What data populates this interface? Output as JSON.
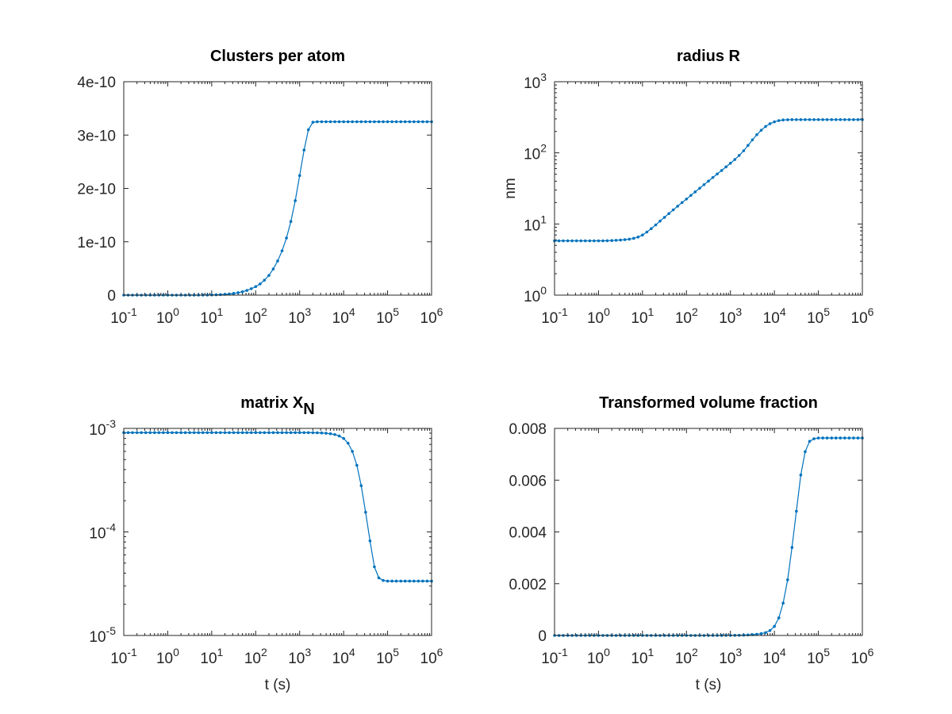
{
  "figure": {
    "background": "#ffffff"
  },
  "chart_data": [
    {
      "type": "line",
      "title": "Clusters per atom",
      "xlabel": "",
      "ylabel": "",
      "xscale": "log",
      "yscale": "linear",
      "xlim": [
        0.1,
        1000000
      ],
      "ylim": [
        0,
        4e-10
      ],
      "yticks": [
        0,
        1e-10,
        2e-10,
        3e-10,
        4e-10
      ],
      "ytick_labels": [
        "0",
        "1e-10",
        "2e-10",
        "3e-10",
        "4e-10"
      ],
      "xticks": [
        0.1,
        1,
        10,
        100,
        1000,
        10000,
        100000,
        1000000
      ],
      "xtick_labels": [
        [
          "10",
          "-1"
        ],
        [
          "10",
          "0"
        ],
        [
          "10",
          "1"
        ],
        [
          "10",
          "2"
        ],
        [
          "10",
          "3"
        ],
        [
          "10",
          "4"
        ],
        [
          "10",
          "5"
        ],
        [
          "10",
          "6"
        ]
      ],
      "grid": false,
      "color": "#0072bd",
      "series": [
        {
          "x": [
            0.1,
            0.126,
            0.158,
            0.2,
            0.251,
            0.316,
            0.398,
            0.501,
            0.631,
            0.794,
            1,
            1.26,
            1.58,
            2,
            2.51,
            3.16,
            3.98,
            5.01,
            6.31,
            7.94,
            10,
            12.6,
            15.8,
            20,
            25.1,
            31.6,
            39.8,
            50.1,
            63.1,
            79.4,
            100,
            126,
            158,
            200,
            251,
            316,
            398,
            501,
            631,
            794,
            1000,
            1260,
            1580,
            2000,
            2510,
            3160,
            3980,
            5010,
            6310,
            7940,
            10000,
            12600,
            15800,
            20000,
            25100,
            31600,
            39800,
            50100,
            63100,
            79400,
            100000,
            126000,
            158000,
            200000,
            251000,
            316000,
            398000,
            501000,
            631000,
            794000,
            1000000
          ],
          "y": [
            0,
            0,
            0,
            0,
            0,
            0,
            0,
            0,
            0,
            0,
            0,
            0,
            0,
            0,
            0,
            0,
            0,
            0,
            1e-13,
            2e-13,
            4e-13,
            6e-13,
            1e-12,
            1.5e-12,
            2.2e-12,
            3.2e-12,
            4.5e-12,
            6.3e-12,
            8.8e-12,
            1.2e-11,
            1.6e-11,
            2.1e-11,
            2.8e-11,
            3.7e-11,
            4.9e-11,
            6.4e-11,
            8.3e-11,
            1.07e-10,
            1.38e-10,
            1.77e-10,
            2.24e-10,
            2.72e-10,
            3.1e-10,
            3.24e-10,
            3.25e-10,
            3.25e-10,
            3.25e-10,
            3.25e-10,
            3.25e-10,
            3.25e-10,
            3.25e-10,
            3.25e-10,
            3.25e-10,
            3.25e-10,
            3.25e-10,
            3.25e-10,
            3.25e-10,
            3.25e-10,
            3.25e-10,
            3.25e-10,
            3.25e-10,
            3.25e-10,
            3.25e-10,
            3.25e-10,
            3.25e-10,
            3.25e-10,
            3.25e-10,
            3.25e-10,
            3.25e-10,
            3.25e-10,
            3.25e-10
          ]
        }
      ]
    },
    {
      "type": "line",
      "title": "radius R",
      "xlabel": "",
      "ylabel": "nm",
      "xscale": "log",
      "yscale": "log",
      "xlim": [
        0.1,
        1000000
      ],
      "ylim": [
        1,
        1000
      ],
      "yticks": [
        1,
        10,
        100,
        1000
      ],
      "ytick_labels": [
        [
          "10",
          "0"
        ],
        [
          "10",
          "1"
        ],
        [
          "10",
          "2"
        ],
        [
          "10",
          "3"
        ]
      ],
      "xticks": [
        0.1,
        1,
        10,
        100,
        1000,
        10000,
        100000,
        1000000
      ],
      "xtick_labels": [
        [
          "10",
          "-1"
        ],
        [
          "10",
          "0"
        ],
        [
          "10",
          "1"
        ],
        [
          "10",
          "2"
        ],
        [
          "10",
          "3"
        ],
        [
          "10",
          "4"
        ],
        [
          "10",
          "5"
        ],
        [
          "10",
          "6"
        ]
      ],
      "grid": false,
      "color": "#0072bd",
      "series": [
        {
          "x": [
            0.1,
            0.126,
            0.158,
            0.2,
            0.251,
            0.316,
            0.398,
            0.501,
            0.631,
            0.794,
            1,
            1.26,
            1.58,
            2,
            2.51,
            3.16,
            3.98,
            5.01,
            6.31,
            7.94,
            10,
            12.6,
            15.8,
            20,
            25.1,
            31.6,
            39.8,
            50.1,
            63.1,
            79.4,
            100,
            126,
            158,
            200,
            251,
            316,
            398,
            501,
            631,
            794,
            1000,
            1260,
            1580,
            2000,
            2510,
            3160,
            3980,
            5010,
            6310,
            7940,
            10000,
            12600,
            15800,
            20000,
            25100,
            31600,
            39800,
            50100,
            63100,
            79400,
            100000,
            126000,
            158000,
            200000,
            251000,
            316000,
            398000,
            501000,
            631000,
            794000,
            1000000
          ],
          "y": [
            5.8,
            5.8,
            5.8,
            5.8,
            5.8,
            5.8,
            5.8,
            5.8,
            5.8,
            5.8,
            5.8,
            5.8,
            5.82,
            5.85,
            5.9,
            5.95,
            6.02,
            6.12,
            6.28,
            6.55,
            7,
            7.7,
            8.6,
            9.7,
            11,
            12.4,
            14,
            15.8,
            17.8,
            20,
            22.4,
            25.2,
            28.3,
            31.8,
            35.7,
            40,
            45,
            50.5,
            56.5,
            63.5,
            71.5,
            80.5,
            92,
            107,
            127,
            152,
            180,
            208,
            235,
            257,
            273,
            284,
            290,
            292,
            293,
            293,
            293,
            293,
            293,
            293,
            293,
            293,
            293,
            293,
            293,
            293,
            293,
            293,
            293,
            293,
            293
          ]
        }
      ]
    },
    {
      "type": "line",
      "title": "matrix X",
      "title_subscript": "N",
      "xlabel": "t (s)",
      "ylabel": "",
      "xscale": "log",
      "yscale": "log",
      "xlim": [
        0.1,
        1000000
      ],
      "ylim": [
        1e-05,
        0.001
      ],
      "yticks": [
        1e-05,
        0.0001,
        0.001
      ],
      "ytick_labels": [
        [
          "10",
          "-5"
        ],
        [
          "10",
          "-4"
        ],
        [
          "10",
          "-3"
        ]
      ],
      "xticks": [
        0.1,
        1,
        10,
        100,
        1000,
        10000,
        100000,
        1000000
      ],
      "xtick_labels": [
        [
          "10",
          "-1"
        ],
        [
          "10",
          "0"
        ],
        [
          "10",
          "1"
        ],
        [
          "10",
          "2"
        ],
        [
          "10",
          "3"
        ],
        [
          "10",
          "4"
        ],
        [
          "10",
          "5"
        ],
        [
          "10",
          "6"
        ]
      ],
      "grid": false,
      "color": "#0072bd",
      "series": [
        {
          "x": [
            0.1,
            0.126,
            0.158,
            0.2,
            0.251,
            0.316,
            0.398,
            0.501,
            0.631,
            0.794,
            1,
            1.26,
            1.58,
            2,
            2.51,
            3.16,
            3.98,
            5.01,
            6.31,
            7.94,
            10,
            12.6,
            15.8,
            20,
            25.1,
            31.6,
            39.8,
            50.1,
            63.1,
            79.4,
            100,
            126,
            158,
            200,
            251,
            316,
            398,
            501,
            631,
            794,
            1000,
            1260,
            1580,
            2000,
            2510,
            3160,
            3980,
            5010,
            6310,
            7940,
            10000,
            12600,
            15800,
            20000,
            25100,
            31600,
            39800,
            50100,
            63100,
            79400,
            100000,
            126000,
            158000,
            200000,
            251000,
            316000,
            398000,
            501000,
            631000,
            794000,
            1000000
          ],
          "y": [
            0.00091,
            0.00091,
            0.00091,
            0.00091,
            0.00091,
            0.00091,
            0.00091,
            0.00091,
            0.00091,
            0.00091,
            0.00091,
            0.00091,
            0.00091,
            0.00091,
            0.00091,
            0.00091,
            0.00091,
            0.00091,
            0.00091,
            0.00091,
            0.00091,
            0.00091,
            0.00091,
            0.00091,
            0.00091,
            0.00091,
            0.00091,
            0.00091,
            0.00091,
            0.00091,
            0.00091,
            0.00091,
            0.00091,
            0.00091,
            0.00091,
            0.00091,
            0.00091,
            0.00091,
            0.00091,
            0.00091,
            0.00091,
            0.00091,
            0.00091,
            0.000909,
            0.000907,
            0.000904,
            0.000898,
            0.000888,
            0.000872,
            0.000845,
            0.0008,
            0.00072,
            0.0006,
            0.00044,
            0.00028,
            0.000155,
            8.2e-05,
            4.6e-05,
            3.6e-05,
            3.4e-05,
            3.35e-05,
            3.35e-05,
            3.35e-05,
            3.35e-05,
            3.35e-05,
            3.35e-05,
            3.35e-05,
            3.35e-05,
            3.35e-05,
            3.35e-05,
            3.35e-05
          ]
        }
      ]
    },
    {
      "type": "line",
      "title": "Transformed volume fraction",
      "xlabel": "t (s)",
      "ylabel": "",
      "xscale": "log",
      "yscale": "linear",
      "xlim": [
        0.1,
        1000000
      ],
      "ylim": [
        0,
        0.008
      ],
      "yticks": [
        0,
        0.002,
        0.004,
        0.006,
        0.008
      ],
      "ytick_labels": [
        "0",
        "0.002",
        "0.004",
        "0.006",
        "0.008"
      ],
      "xticks": [
        0.1,
        1,
        10,
        100,
        1000,
        10000,
        100000,
        1000000
      ],
      "xtick_labels": [
        [
          "10",
          "-1"
        ],
        [
          "10",
          "0"
        ],
        [
          "10",
          "1"
        ],
        [
          "10",
          "2"
        ],
        [
          "10",
          "3"
        ],
        [
          "10",
          "4"
        ],
        [
          "10",
          "5"
        ],
        [
          "10",
          "6"
        ]
      ],
      "grid": false,
      "color": "#0072bd",
      "series": [
        {
          "x": [
            0.1,
            0.126,
            0.158,
            0.2,
            0.251,
            0.316,
            0.398,
            0.501,
            0.631,
            0.794,
            1,
            1.26,
            1.58,
            2,
            2.51,
            3.16,
            3.98,
            5.01,
            6.31,
            7.94,
            10,
            12.6,
            15.8,
            20,
            25.1,
            31.6,
            39.8,
            50.1,
            63.1,
            79.4,
            100,
            126,
            158,
            200,
            251,
            316,
            398,
            501,
            631,
            794,
            1000,
            1260,
            1580,
            2000,
            2510,
            3160,
            3980,
            5010,
            6310,
            7940,
            10000,
            12600,
            15800,
            20000,
            25100,
            31600,
            39800,
            50100,
            63100,
            79400,
            100000,
            126000,
            158000,
            200000,
            251000,
            316000,
            398000,
            501000,
            631000,
            794000,
            1000000
          ],
          "y": [
            0,
            0,
            0,
            0,
            0,
            0,
            0,
            0,
            0,
            0,
            0,
            0,
            0,
            0,
            0,
            0,
            0,
            0,
            0,
            0,
            0,
            0,
            0,
            0,
            0,
            0,
            0,
            0,
            0,
            0,
            0,
            0,
            0,
            0,
            0,
            0,
            0,
            0,
            1e-06,
            2e-06,
            3e-06,
            5e-06,
            8e-06,
            1.3e-05,
            2e-05,
            3e-05,
            4.5e-05,
            7e-05,
            0.00011,
            0.00019,
            0.00035,
            0.00068,
            0.00125,
            0.00215,
            0.0034,
            0.0048,
            0.0062,
            0.0071,
            0.0075,
            0.0076,
            0.00763,
            0.00763,
            0.00763,
            0.00763,
            0.00763,
            0.00763,
            0.00763,
            0.00763,
            0.00763,
            0.00763,
            0.00763
          ]
        }
      ]
    }
  ]
}
